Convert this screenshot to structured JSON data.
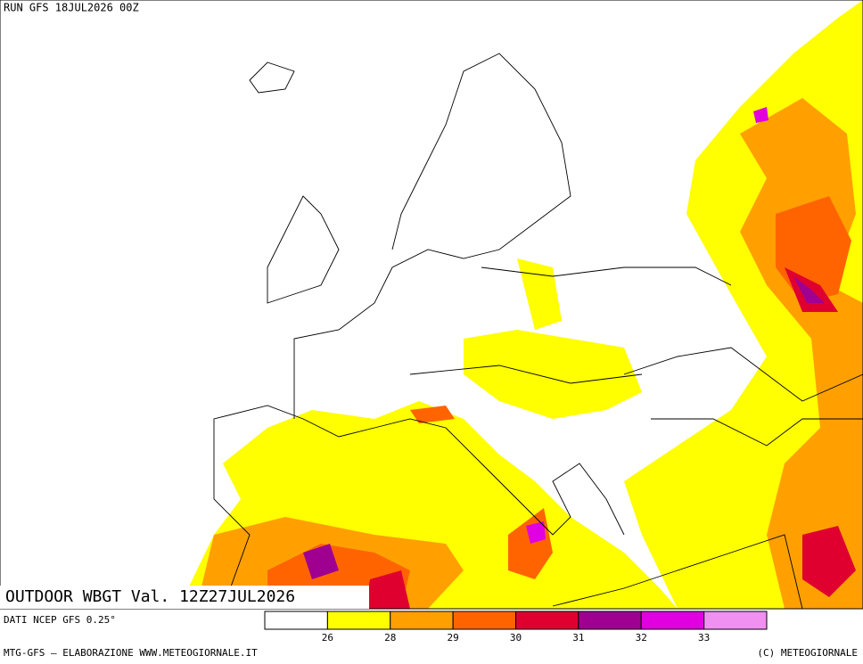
{
  "header": {
    "run": "RUN GFS 18JUL2026 00Z"
  },
  "map": {
    "title": "OUTDOOR WBGT Val. 12Z27JUL2026"
  },
  "legend": {
    "colors": [
      "#ffffff",
      "#ffff00",
      "#ffa000",
      "#ff6400",
      "#e00030",
      "#a00090",
      "#e000e0",
      "#f090f0"
    ],
    "ticks": [
      26,
      28,
      29,
      30,
      31,
      32,
      33
    ]
  },
  "footer": {
    "source": "DATI NCEP GFS 0.25°",
    "credit": "MTG-GFS — ELABORAZIONE WWW.METEOGIORNALE.IT",
    "copyright": "(C) METEOGIORNALE"
  }
}
